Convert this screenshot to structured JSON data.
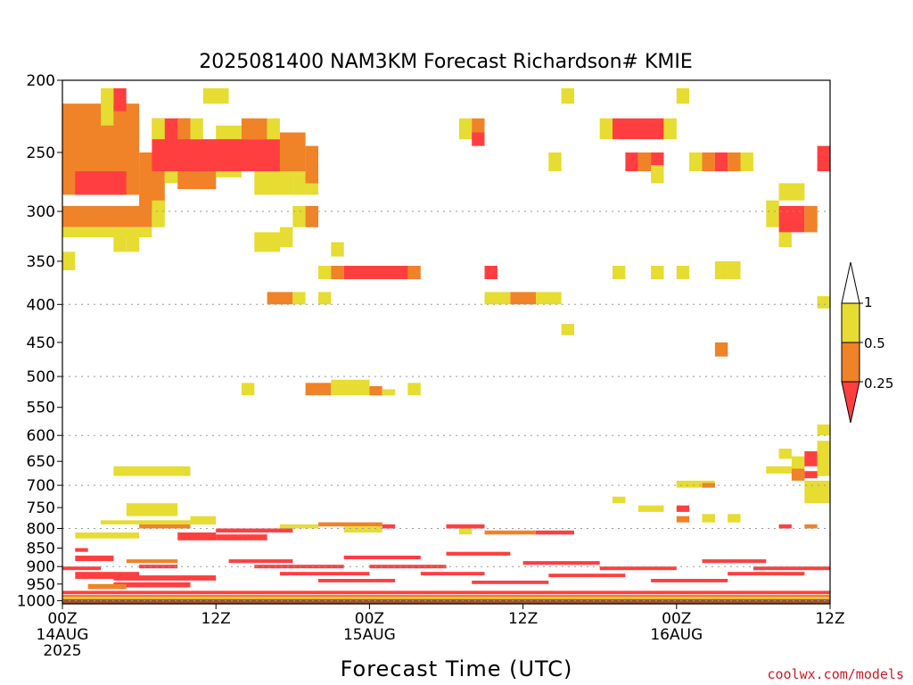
{
  "chart_data": {
    "type": "heatmap",
    "title": "2025081400 NAM3KM Forecast Richardson# KMIE",
    "xlabel": "Forecast Time (UTC)",
    "credit": "coolwx.com/models",
    "x_unit": "forecast hour",
    "xlim": [
      0,
      60
    ],
    "x_ticks": [
      {
        "hour": 0,
        "lines": [
          "00Z",
          "14AUG",
          "2025"
        ]
      },
      {
        "hour": 12,
        "lines": [
          "12Z"
        ]
      },
      {
        "hour": 24,
        "lines": [
          "00Z",
          "15AUG"
        ]
      },
      {
        "hour": 36,
        "lines": [
          "12Z"
        ]
      },
      {
        "hour": 48,
        "lines": [
          "00Z",
          "16AUG"
        ]
      },
      {
        "hour": 60,
        "lines": [
          "12Z"
        ]
      }
    ],
    "y_unit": "hPa",
    "ylim": [
      1010,
      200
    ],
    "y_ticks": [
      200,
      250,
      300,
      350,
      400,
      450,
      500,
      550,
      600,
      650,
      700,
      750,
      800,
      850,
      900,
      950,
      1000
    ],
    "grid_levels": [
      300,
      400,
      500,
      600,
      700,
      800,
      900,
      1000
    ],
    "ground": {
      "top_hpa": 995,
      "color": "#a0522d"
    },
    "legend": {
      "placement": "right",
      "labels": [
        "1",
        "0.5",
        "0.25"
      ],
      "colors": {
        "low": "#ff3f3f",
        "mid": "#f08228",
        "high": "#e6dc32"
      }
    },
    "colors": {
      "low": "#ff3f3f",
      "mid": "#f08228",
      "high": "#e6dc32"
    },
    "cells": [
      [
        0,
        6,
        215,
        285,
        "mid"
      ],
      [
        1,
        5,
        265,
        285,
        "low"
      ],
      [
        6,
        7,
        265,
        285,
        "high"
      ],
      [
        6,
        8,
        250,
        300,
        "mid"
      ],
      [
        8,
        9,
        230,
        275,
        "high"
      ],
      [
        9,
        12,
        260,
        280,
        "mid"
      ],
      [
        12,
        14,
        230,
        270,
        "high"
      ],
      [
        7,
        10,
        225,
        265,
        "low"
      ],
      [
        10,
        18,
        240,
        265,
        "low"
      ],
      [
        15,
        18,
        265,
        285,
        "high"
      ],
      [
        18,
        20,
        265,
        285,
        "high"
      ],
      [
        17,
        19,
        235,
        265,
        "mid"
      ],
      [
        19,
        20,
        245,
        275,
        "mid"
      ],
      [
        3,
        4,
        205,
        230,
        "high"
      ],
      [
        4,
        5,
        205,
        220,
        "low"
      ],
      [
        4,
        6,
        225,
        240,
        "mid"
      ],
      [
        7,
        8,
        225,
        240,
        "high"
      ],
      [
        9,
        10,
        225,
        240,
        "mid"
      ],
      [
        10,
        11,
        225,
        240,
        "high"
      ],
      [
        14,
        16,
        225,
        240,
        "mid"
      ],
      [
        16,
        17,
        225,
        240,
        "high"
      ],
      [
        11,
        13,
        205,
        215,
        "high"
      ],
      [
        0,
        7,
        295,
        315,
        "mid"
      ],
      [
        0,
        7,
        315,
        325,
        "high"
      ],
      [
        7,
        8,
        290,
        315,
        "high"
      ],
      [
        4,
        5,
        325,
        340,
        "high"
      ],
      [
        5,
        6,
        320,
        340,
        "high"
      ],
      [
        0,
        1,
        340,
        360,
        "high"
      ],
      [
        15,
        17,
        320,
        340,
        "high"
      ],
      [
        17,
        18,
        315,
        335,
        "high"
      ],
      [
        18,
        19,
        295,
        315,
        "high"
      ],
      [
        19,
        20,
        295,
        315,
        "mid"
      ],
      [
        21,
        22,
        330,
        345,
        "high"
      ],
      [
        20,
        21,
        355,
        370,
        "high"
      ],
      [
        21,
        22,
        355,
        370,
        "mid"
      ],
      [
        22,
        27,
        355,
        370,
        "low"
      ],
      [
        27,
        28,
        355,
        370,
        "mid"
      ],
      [
        16,
        18,
        385,
        400,
        "mid"
      ],
      [
        18,
        19,
        385,
        400,
        "high"
      ],
      [
        20,
        21,
        385,
        400,
        "high"
      ],
      [
        33,
        34,
        355,
        370,
        "low"
      ],
      [
        33,
        35,
        385,
        400,
        "high"
      ],
      [
        35,
        37,
        385,
        400,
        "mid"
      ],
      [
        37,
        39,
        385,
        400,
        "high"
      ],
      [
        31,
        32,
        225,
        240,
        "high"
      ],
      [
        32,
        33,
        225,
        240,
        "mid"
      ],
      [
        32,
        33,
        235,
        245,
        "low"
      ],
      [
        39,
        40,
        205,
        215,
        "high"
      ],
      [
        38,
        39,
        250,
        265,
        "high"
      ],
      [
        42,
        43,
        225,
        240,
        "high"
      ],
      [
        43,
        47,
        225,
        240,
        "low"
      ],
      [
        44,
        45,
        250,
        265,
        "low"
      ],
      [
        45,
        46,
        250,
        265,
        "mid"
      ],
      [
        46,
        47,
        250,
        265,
        "low"
      ],
      [
        46,
        47,
        260,
        275,
        "high"
      ],
      [
        47,
        48,
        225,
        240,
        "high"
      ],
      [
        48,
        49,
        205,
        215,
        "high"
      ],
      [
        49,
        50,
        250,
        265,
        "high"
      ],
      [
        50,
        51,
        250,
        265,
        "mid"
      ],
      [
        51,
        52,
        250,
        265,
        "low"
      ],
      [
        52,
        53,
        250,
        265,
        "mid"
      ],
      [
        53,
        54,
        250,
        265,
        "high"
      ],
      [
        43,
        44,
        355,
        370,
        "high"
      ],
      [
        46,
        47,
        355,
        370,
        "high"
      ],
      [
        48,
        49,
        355,
        370,
        "high"
      ],
      [
        51,
        52,
        350,
        370,
        "high"
      ],
      [
        52,
        53,
        350,
        370,
        "high"
      ],
      [
        39,
        40,
        425,
        440,
        "high"
      ],
      [
        51,
        52,
        450,
        470,
        "mid"
      ],
      [
        56,
        58,
        275,
        290,
        "high"
      ],
      [
        55,
        56,
        290,
        315,
        "high"
      ],
      [
        56,
        58,
        295,
        320,
        "low"
      ],
      [
        58,
        59,
        295,
        320,
        "mid"
      ],
      [
        56,
        57,
        320,
        335,
        "high"
      ],
      [
        59,
        60,
        245,
        265,
        "low"
      ],
      [
        59,
        60,
        390,
        405,
        "high"
      ],
      [
        14,
        15,
        510,
        530,
        "high"
      ],
      [
        19,
        21,
        510,
        530,
        "mid"
      ],
      [
        21,
        24,
        505,
        530,
        "high"
      ],
      [
        24,
        25,
        515,
        530,
        "mid"
      ],
      [
        25,
        26,
        520,
        530,
        "high"
      ],
      [
        27,
        28,
        510,
        530,
        "high"
      ],
      [
        59,
        60,
        580,
        600,
        "high"
      ],
      [
        56,
        57,
        625,
        645,
        "high"
      ],
      [
        57,
        58,
        640,
        665,
        "high"
      ],
      [
        58,
        59,
        630,
        660,
        "low"
      ],
      [
        59,
        60,
        610,
        680,
        "high"
      ],
      [
        55,
        57,
        660,
        675,
        "high"
      ],
      [
        57,
        58,
        665,
        690,
        "mid"
      ],
      [
        58,
        59,
        670,
        685,
        "low"
      ],
      [
        58,
        60,
        690,
        740,
        "high"
      ],
      [
        4,
        10,
        660,
        680,
        "high"
      ],
      [
        48,
        51,
        690,
        705,
        "high"
      ],
      [
        50,
        51,
        695,
        705,
        "mid"
      ],
      [
        43,
        44,
        725,
        740,
        "high"
      ],
      [
        45,
        47,
        745,
        760,
        "high"
      ],
      [
        48,
        49,
        745,
        760,
        "low"
      ],
      [
        48,
        49,
        770,
        785,
        "mid"
      ],
      [
        50,
        51,
        765,
        785,
        "high"
      ],
      [
        52,
        53,
        765,
        785,
        "high"
      ],
      [
        3,
        10,
        780,
        790,
        "high"
      ],
      [
        5,
        9,
        740,
        770,
        "high"
      ],
      [
        6,
        10,
        790,
        800,
        "mid"
      ],
      [
        10,
        12,
        770,
        790,
        "high"
      ],
      [
        12,
        18,
        800,
        810,
        "low"
      ],
      [
        9,
        12,
        810,
        830,
        "low"
      ],
      [
        12,
        16,
        815,
        830,
        "low"
      ],
      [
        1,
        6,
        810,
        825,
        "high"
      ],
      [
        17,
        20,
        790,
        800,
        "high"
      ],
      [
        20,
        25,
        785,
        795,
        "mid"
      ],
      [
        22,
        25,
        795,
        810,
        "high"
      ],
      [
        25,
        26,
        790,
        800,
        "low"
      ],
      [
        30,
        33,
        790,
        800,
        "low"
      ],
      [
        31,
        32,
        800,
        815,
        "high"
      ],
      [
        33,
        37,
        805,
        815,
        "mid"
      ],
      [
        37,
        40,
        805,
        815,
        "low"
      ],
      [
        56,
        57,
        790,
        800,
        "low"
      ],
      [
        58,
        59,
        790,
        800,
        "mid"
      ],
      [
        1,
        2,
        850,
        860,
        "low"
      ],
      [
        1,
        4,
        870,
        885,
        "low"
      ],
      [
        0,
        3,
        900,
        910,
        "low"
      ],
      [
        1,
        6,
        915,
        935,
        "low"
      ],
      [
        5,
        9,
        880,
        890,
        "mid"
      ],
      [
        4,
        12,
        925,
        940,
        "low"
      ],
      [
        4,
        10,
        945,
        960,
        "low"
      ],
      [
        2,
        5,
        950,
        965,
        "mid"
      ],
      [
        6,
        9,
        895,
        905,
        "low"
      ],
      [
        13,
        18,
        880,
        890,
        "low"
      ],
      [
        15,
        22,
        895,
        905,
        "low"
      ],
      [
        17,
        24,
        915,
        925,
        "low"
      ],
      [
        20,
        26,
        935,
        945,
        "low"
      ],
      [
        22,
        28,
        870,
        880,
        "low"
      ],
      [
        24,
        30,
        895,
        905,
        "low"
      ],
      [
        28,
        33,
        915,
        925,
        "low"
      ],
      [
        30,
        35,
        860,
        870,
        "low"
      ],
      [
        32,
        38,
        940,
        950,
        "low"
      ],
      [
        36,
        42,
        885,
        895,
        "low"
      ],
      [
        38,
        44,
        920,
        930,
        "low"
      ],
      [
        42,
        48,
        900,
        910,
        "low"
      ],
      [
        46,
        52,
        935,
        945,
        "low"
      ],
      [
        50,
        55,
        880,
        890,
        "low"
      ],
      [
        52,
        58,
        915,
        925,
        "low"
      ],
      [
        54,
        60,
        900,
        910,
        "low"
      ],
      [
        0,
        60,
        970,
        980,
        "low"
      ],
      [
        0,
        60,
        982,
        990,
        "mid"
      ],
      [
        0,
        60,
        990,
        995,
        "high"
      ]
    ]
  }
}
